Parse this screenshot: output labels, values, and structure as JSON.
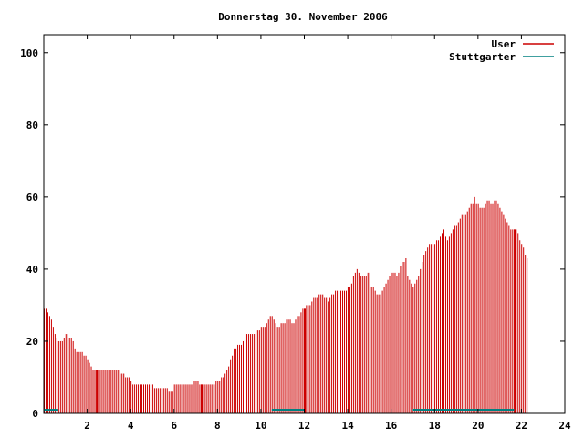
{
  "chart_data": {
    "type": "bar",
    "title": "Donnerstag 30. November 2006",
    "xlabel": "",
    "ylabel": "",
    "xlim": [
      0,
      24
    ],
    "ylim": [
      0,
      105
    ],
    "grid": false,
    "legend_position": "top-right",
    "x_ticks": [
      "2",
      "4",
      "6",
      "8",
      "10",
      "12",
      "14",
      "16",
      "18",
      "20",
      "22",
      "24"
    ],
    "y_ticks": [
      "0",
      "20",
      "40",
      "60",
      "80",
      "100"
    ],
    "bar_step_hours": 0.0833,
    "colors": {
      "User": "#cc0000",
      "Stuttgarter": "#008080",
      "axis": "#000000"
    },
    "series": [
      {
        "name": "User",
        "values": [
          29,
          29,
          28,
          27,
          26,
          24,
          22,
          21,
          20,
          20,
          20,
          21,
          22,
          22,
          21,
          21,
          20,
          18,
          17,
          17,
          17,
          17,
          16,
          16,
          15,
          14,
          13,
          12,
          12,
          12,
          12,
          12,
          12,
          12,
          12,
          12,
          12,
          12,
          12,
          12,
          12,
          12,
          11,
          11,
          11,
          10,
          10,
          10,
          9,
          8,
          8,
          8,
          8,
          8,
          8,
          8,
          8,
          8,
          8,
          8,
          8,
          7,
          7,
          7,
          7,
          7,
          7,
          7,
          7,
          6,
          6,
          6,
          8,
          8,
          8,
          8,
          8,
          8,
          8,
          8,
          8,
          8,
          8,
          9,
          9,
          9,
          8,
          8,
          8,
          8,
          8,
          8,
          8,
          8,
          8,
          9,
          9,
          9,
          10,
          10,
          11,
          12,
          13,
          15,
          16,
          18,
          18,
          19,
          19,
          19,
          20,
          21,
          22,
          22,
          22,
          22,
          22,
          22,
          23,
          23,
          24,
          24,
          24,
          25,
          26,
          27,
          27,
          26,
          25,
          24,
          24,
          25,
          25,
          25,
          26,
          26,
          26,
          25,
          25,
          26,
          27,
          27,
          28,
          29,
          29,
          30,
          30,
          30,
          31,
          32,
          32,
          32,
          33,
          33,
          33,
          32,
          32,
          31,
          32,
          33,
          33,
          34,
          34,
          34,
          34,
          34,
          34,
          34,
          35,
          35,
          36,
          38,
          39,
          40,
          39,
          38,
          38,
          38,
          38,
          39,
          39,
          35,
          35,
          34,
          33,
          33,
          33,
          34,
          35,
          36,
          37,
          38,
          39,
          39,
          39,
          38,
          39,
          41,
          42,
          42,
          43,
          38,
          37,
          36,
          35,
          36,
          37,
          38,
          40,
          42,
          44,
          45,
          46,
          47,
          47,
          47,
          47,
          48,
          48,
          49,
          50,
          51,
          49,
          48,
          49,
          50,
          51,
          52,
          52,
          53,
          54,
          55,
          55,
          55,
          56,
          57,
          58,
          58,
          60,
          58,
          58,
          57,
          57,
          57,
          58,
          59,
          59,
          58,
          58,
          59,
          59,
          58,
          57,
          56,
          55,
          54,
          53,
          52,
          51,
          51,
          51,
          51,
          50,
          48,
          47,
          46,
          44,
          43
        ],
        "highlight_hours": [
          2.42,
          7.25,
          12.0,
          21.67
        ]
      },
      {
        "name": "Stuttgarter",
        "segments": [
          {
            "x_start": 0.0,
            "x_end": 0.67,
            "value": 1
          },
          {
            "x_start": 10.5,
            "x_end": 12.0,
            "value": 1
          },
          {
            "x_start": 17.0,
            "x_end": 21.67,
            "value": 1
          }
        ]
      }
    ]
  }
}
